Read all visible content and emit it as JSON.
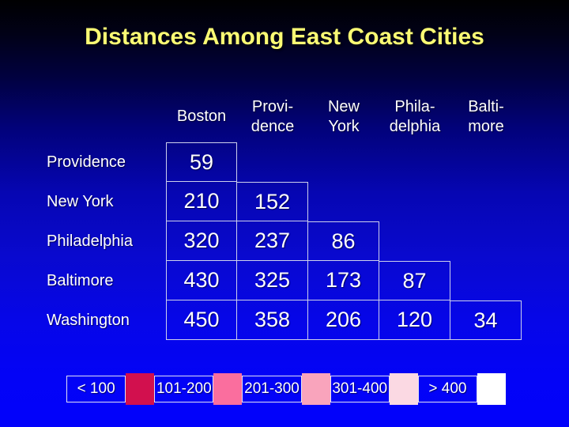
{
  "slide": {
    "title": "Distances Among East Coast Cities"
  },
  "colors": {
    "title_text": "#fbfb74",
    "body_text": "#ffffff",
    "grid_line": "#cdd0ec",
    "background_top": "#000002",
    "background_bottom": "#0303fa"
  },
  "table": {
    "column_headers": [
      "Boston",
      "Provi-\ndence",
      "New\nYork",
      "Phila-\ndelphia",
      "Balti-\nmore"
    ],
    "row_labels": [
      "Providence",
      "New York",
      "Philadelphia",
      "Baltimore",
      "Washington"
    ],
    "rows": [
      [
        59
      ],
      [
        210,
        152
      ],
      [
        320,
        237,
        86
      ],
      [
        430,
        325,
        173,
        87
      ],
      [
        450,
        358,
        206,
        120,
        34
      ]
    ]
  },
  "legend": {
    "items": [
      {
        "label": "< 100",
        "color": "#d2104e"
      },
      {
        "label": "101-200",
        "color": "#fa6e9e"
      },
      {
        "label": "201-300",
        "color": "#f9a4bc"
      },
      {
        "label": "301-400",
        "color": "#fbd9e3"
      },
      {
        "label": "> 400",
        "color": "#ffffff"
      }
    ]
  },
  "chart_data": {
    "type": "table",
    "title": "Distances Among East Coast Cities",
    "columns": [
      "Boston",
      "Providence",
      "New York",
      "Philadelphia",
      "Baltimore"
    ],
    "rows": [
      "Providence",
      "New York",
      "Philadelphia",
      "Baltimore",
      "Washington"
    ],
    "values": [
      [
        59
      ],
      [
        210,
        152
      ],
      [
        320,
        237,
        86
      ],
      [
        430,
        325,
        173,
        87
      ],
      [
        450,
        358,
        206,
        120,
        34
      ]
    ],
    "legend_bins": [
      "< 100",
      "101-200",
      "201-300",
      "301-400",
      "> 400"
    ],
    "legend_colors": [
      "#d2104e",
      "#fa6e9e",
      "#f9a4bc",
      "#fbd9e3",
      "#ffffff"
    ],
    "legend_position": "bottom"
  }
}
